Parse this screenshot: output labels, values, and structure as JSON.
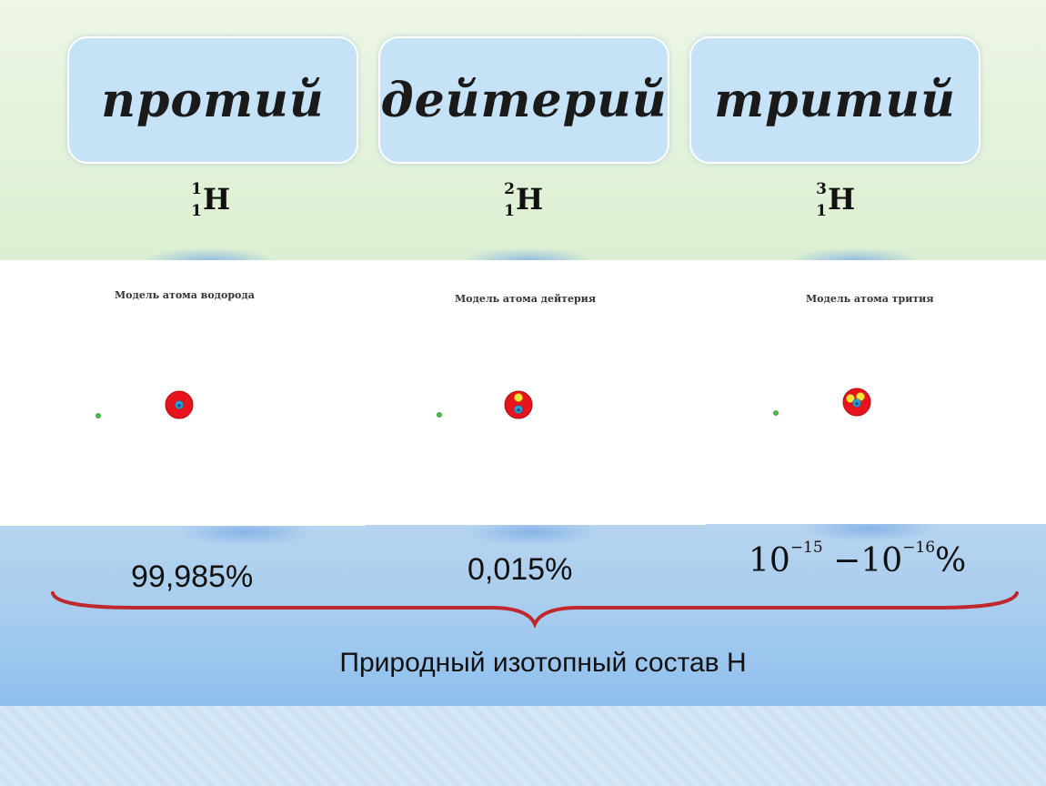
{
  "isotopes": [
    {
      "name": "протий",
      "mass_number": "1",
      "atomic_number": "1",
      "element": "H",
      "model_title": "Модель атома водорода",
      "abundance": "99,985%"
    },
    {
      "name": "дейтерий",
      "mass_number": "2",
      "atomic_number": "1",
      "element": "H",
      "model_title": "Модель  атома дейтерия",
      "abundance": "0,015%"
    },
    {
      "name": "тритий",
      "mass_number": "3",
      "atomic_number": "1",
      "element": "H",
      "model_title": "Модель атома трития",
      "abundance_base1": "10",
      "abundance_exp1": "−15",
      "abundance_dash": "−",
      "abundance_base2": "10",
      "abundance_exp2": "−16",
      "abundance_unit": "%"
    }
  ],
  "caption": "Природный изотопный состав Н",
  "colors": {
    "nucleus": "#e8141c",
    "proton": "#2a9fd6",
    "neutron": "#f5e33a",
    "electron": "#45c045",
    "brace": "#c0282d"
  }
}
